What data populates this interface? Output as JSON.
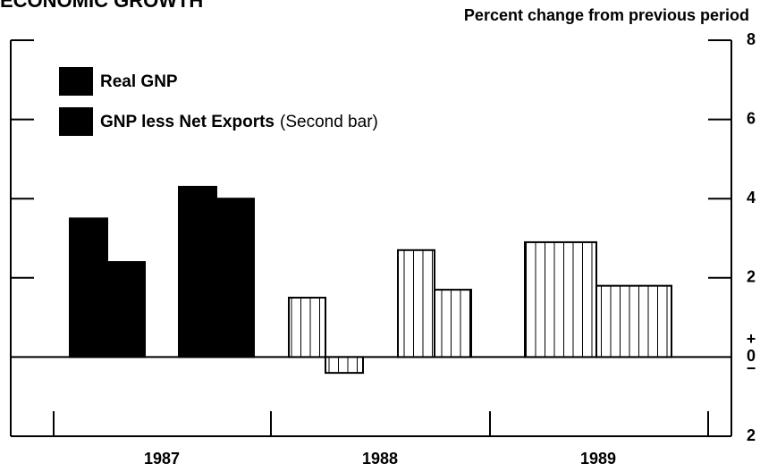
{
  "chart_data": {
    "type": "bar",
    "title": "ECONOMIC GROWTH",
    "subtitle": "Percent change from previous period",
    "categories": [
      null,
      null,
      null,
      null,
      null
    ],
    "groups": [
      "1987",
      "1988",
      "1989"
    ],
    "hatched": [
      false,
      false,
      true,
      true,
      true
    ],
    "series": [
      {
        "name": "Real GNP",
        "color": "#000000",
        "values": [
          3.5,
          4.3,
          1.5,
          2.7,
          2.9
        ]
      },
      {
        "name": "GNP less Net Exports",
        "name_note": "(Second bar)",
        "color": "#000000",
        "values": [
          2.4,
          4.0,
          -0.4,
          1.7,
          1.8
        ]
      }
    ],
    "ylim": [
      -2,
      8
    ],
    "yticks": [
      {
        "value": -2,
        "label": "2"
      },
      0,
      2,
      4,
      6,
      8
    ],
    "zero_signs": [
      "+",
      "−"
    ]
  }
}
